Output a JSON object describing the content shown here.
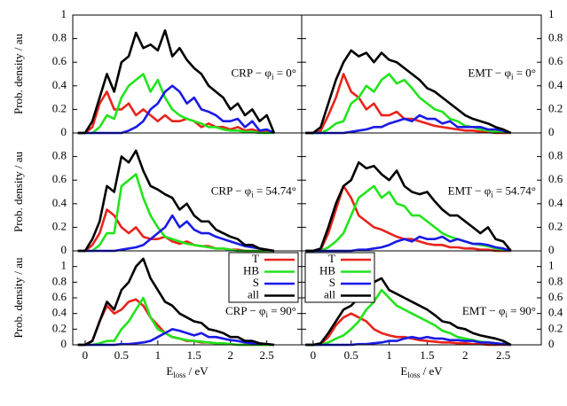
{
  "chart_data": [
    {
      "type": "line",
      "annotation": [
        "CRP − φ",
        "i",
        " = 0°"
      ],
      "ylabel": "Prob. density / au",
      "yaxis_side": "left",
      "ylim": [
        0,
        1
      ],
      "yticks": [
        0,
        0.2,
        0.4,
        0.6,
        0.8,
        1
      ],
      "xlim": [
        -0.17,
        2.98
      ],
      "x": [
        -0.1,
        0,
        0.1,
        0.2,
        0.3,
        0.4,
        0.5,
        0.6,
        0.7,
        0.8,
        0.9,
        1,
        1.1,
        1.2,
        1.3,
        1.4,
        1.5,
        1.6,
        1.7,
        1.8,
        1.9,
        2,
        2.1,
        2.2,
        2.3,
        2.4,
        2.5,
        2.6
      ],
      "series": [
        {
          "name": "T",
          "color": "#e8231b",
          "values": [
            0,
            0,
            0.05,
            0.25,
            0.35,
            0.2,
            0.2,
            0.25,
            0.15,
            0.2,
            0.15,
            0.1,
            0.15,
            0.1,
            0.1,
            0.12,
            0.1,
            0.05,
            0.08,
            0.05,
            0.05,
            0.03,
            0.05,
            0.02,
            0.03,
            0.01,
            0.02,
            0
          ]
        },
        {
          "name": "HB",
          "color": "#22e41c",
          "values": [
            0,
            0,
            0,
            0.05,
            0.15,
            0.12,
            0.3,
            0.4,
            0.45,
            0.5,
            0.35,
            0.45,
            0.3,
            0.2,
            0.15,
            0.12,
            0.1,
            0.08,
            0.05,
            0.05,
            0.03,
            0.02,
            0.02,
            0.01,
            0.01,
            0,
            0,
            0
          ]
        },
        {
          "name": "S",
          "color": "#1a1ae6",
          "values": [
            0,
            0,
            0,
            0,
            0,
            0,
            0,
            0.02,
            0.05,
            0.1,
            0.2,
            0.25,
            0.35,
            0.4,
            0.35,
            0.25,
            0.3,
            0.2,
            0.18,
            0.15,
            0.1,
            0.1,
            0.12,
            0.05,
            0.1,
            0.02,
            0.03,
            0
          ]
        },
        {
          "name": "all",
          "color": "#000000",
          "values": [
            0,
            0,
            0.1,
            0.3,
            0.5,
            0.35,
            0.6,
            0.65,
            0.85,
            0.72,
            0.75,
            0.7,
            0.87,
            0.65,
            0.72,
            0.62,
            0.55,
            0.5,
            0.4,
            0.35,
            0.3,
            0.2,
            0.25,
            0.15,
            0.2,
            0.1,
            0.15,
            0
          ]
        }
      ]
    },
    {
      "type": "line",
      "annotation": [
        "EMT − φ",
        "i",
        " = 0°"
      ],
      "yaxis_side": "right",
      "ylim": [
        0,
        1
      ],
      "yticks": [
        0,
        0.2,
        0.4,
        0.6,
        0.8,
        1
      ],
      "xlim": [
        -0.15,
        3
      ],
      "x": [
        -0.1,
        0,
        0.1,
        0.2,
        0.3,
        0.4,
        0.5,
        0.6,
        0.7,
        0.8,
        0.9,
        1,
        1.1,
        1.2,
        1.3,
        1.4,
        1.5,
        1.6,
        1.7,
        1.8,
        1.9,
        2,
        2.1,
        2.2,
        2.3,
        2.4,
        2.5,
        2.6
      ],
      "series": [
        {
          "name": "T",
          "color": "#e8231b",
          "values": [
            0,
            0,
            0.02,
            0.15,
            0.3,
            0.5,
            0.35,
            0.3,
            0.2,
            0.25,
            0.15,
            0.15,
            0.18,
            0.12,
            0.12,
            0.1,
            0.08,
            0.06,
            0.05,
            0.04,
            0.03,
            0.02,
            0.02,
            0.01,
            0.01,
            0,
            0,
            0
          ]
        },
        {
          "name": "HB",
          "color": "#22e41c",
          "values": [
            0,
            0,
            0,
            0.03,
            0.08,
            0.1,
            0.25,
            0.3,
            0.4,
            0.35,
            0.45,
            0.5,
            0.42,
            0.45,
            0.38,
            0.3,
            0.25,
            0.2,
            0.18,
            0.12,
            0.1,
            0.06,
            0.05,
            0.03,
            0.02,
            0.01,
            0.01,
            0
          ]
        },
        {
          "name": "S",
          "color": "#1a1ae6",
          "values": [
            0,
            0,
            0,
            0,
            0,
            0,
            0.01,
            0.02,
            0.03,
            0.05,
            0.05,
            0.08,
            0.1,
            0.12,
            0.1,
            0.15,
            0.12,
            0.12,
            0.08,
            0.1,
            0.05,
            0.05,
            0.05,
            0.05,
            0.03,
            0.03,
            0.02,
            0
          ]
        },
        {
          "name": "all",
          "color": "#000000",
          "values": [
            0,
            0,
            0.05,
            0.25,
            0.45,
            0.6,
            0.7,
            0.65,
            0.68,
            0.6,
            0.68,
            0.62,
            0.6,
            0.55,
            0.5,
            0.45,
            0.38,
            0.35,
            0.3,
            0.25,
            0.2,
            0.15,
            0.12,
            0.1,
            0.08,
            0.05,
            0.03,
            0
          ]
        }
      ]
    },
    {
      "type": "line",
      "annotation": [
        "CRP − φ",
        "i",
        " = 54.74°"
      ],
      "ylabel": "Prob. density / au",
      "yaxis_side": "left",
      "ylim": [
        0,
        1
      ],
      "yticks": [
        0,
        0.2,
        0.4,
        0.6,
        0.8
      ],
      "xlim": [
        -0.17,
        2.98
      ],
      "x": [
        -0.1,
        0,
        0.1,
        0.2,
        0.3,
        0.4,
        0.5,
        0.6,
        0.7,
        0.8,
        0.9,
        1,
        1.1,
        1.2,
        1.3,
        1.4,
        1.5,
        1.6,
        1.7,
        1.8,
        1.9,
        2,
        2.1,
        2.2,
        2.3,
        2.4,
        2.5,
        2.6
      ],
      "series": [
        {
          "name": "T",
          "color": "#e8231b",
          "values": [
            0,
            0,
            0.05,
            0.15,
            0.35,
            0.3,
            0.2,
            0.15,
            0.2,
            0.12,
            0.1,
            0.1,
            0.12,
            0.08,
            0.06,
            0.08,
            0.05,
            0.04,
            0.04,
            0.02,
            0.02,
            0.01,
            0.01,
            0,
            0,
            0,
            0,
            0
          ]
        },
        {
          "name": "HB",
          "color": "#22e41c",
          "values": [
            0,
            0,
            0,
            0.05,
            0.15,
            0.15,
            0.55,
            0.6,
            0.65,
            0.45,
            0.3,
            0.2,
            0.12,
            0.1,
            0.08,
            0.06,
            0.05,
            0.04,
            0.03,
            0.02,
            0.02,
            0.01,
            0,
            0,
            0,
            0,
            0,
            0
          ]
        },
        {
          "name": "S",
          "color": "#1a1ae6",
          "values": [
            0,
            0,
            0,
            0,
            0,
            0,
            0.01,
            0.02,
            0.03,
            0.05,
            0.1,
            0.15,
            0.2,
            0.3,
            0.2,
            0.25,
            0.18,
            0.15,
            0.15,
            0.12,
            0.1,
            0.08,
            0.06,
            0.04,
            0.03,
            0.02,
            0.01,
            0
          ]
        },
        {
          "name": "all",
          "color": "#000000",
          "values": [
            0,
            0,
            0.1,
            0.25,
            0.55,
            0.5,
            0.8,
            0.75,
            0.85,
            0.68,
            0.55,
            0.52,
            0.48,
            0.45,
            0.35,
            0.4,
            0.3,
            0.25,
            0.25,
            0.18,
            0.15,
            0.12,
            0.1,
            0.05,
            0.05,
            0.02,
            0.01,
            0
          ]
        }
      ]
    },
    {
      "type": "line",
      "annotation": [
        "EMT − φ",
        "i",
        " = 54.74°"
      ],
      "yaxis_side": "right",
      "ylim": [
        0,
        1
      ],
      "yticks": [
        0,
        0.2,
        0.4,
        0.6,
        0.8
      ],
      "xlim": [
        -0.15,
        3
      ],
      "x": [
        -0.1,
        0,
        0.1,
        0.2,
        0.3,
        0.4,
        0.5,
        0.6,
        0.7,
        0.8,
        0.9,
        1,
        1.1,
        1.2,
        1.3,
        1.4,
        1.5,
        1.6,
        1.7,
        1.8,
        1.9,
        2,
        2.1,
        2.2,
        2.3,
        2.4,
        2.5,
        2.6
      ],
      "series": [
        {
          "name": "T",
          "color": "#e8231b",
          "values": [
            0,
            0,
            0.01,
            0.15,
            0.35,
            0.55,
            0.45,
            0.3,
            0.25,
            0.2,
            0.18,
            0.15,
            0.12,
            0.1,
            0.1,
            0.08,
            0.06,
            0.05,
            0.05,
            0.03,
            0.03,
            0.02,
            0.02,
            0.01,
            0.01,
            0,
            0,
            0
          ]
        },
        {
          "name": "HB",
          "color": "#22e41c",
          "values": [
            0,
            0,
            0,
            0.03,
            0.08,
            0.15,
            0.3,
            0.45,
            0.5,
            0.55,
            0.45,
            0.5,
            0.4,
            0.38,
            0.3,
            0.3,
            0.25,
            0.2,
            0.15,
            0.12,
            0.1,
            0.08,
            0.06,
            0.05,
            0.04,
            0.02,
            0.01,
            0
          ]
        },
        {
          "name": "S",
          "color": "#1a1ae6",
          "values": [
            0,
            0,
            0,
            0,
            0,
            0,
            0,
            0.01,
            0.01,
            0.02,
            0.03,
            0.05,
            0.08,
            0.1,
            0.08,
            0.12,
            0.1,
            0.1,
            0.12,
            0.08,
            0.1,
            0.08,
            0.06,
            0.06,
            0.05,
            0.03,
            0.02,
            0
          ]
        },
        {
          "name": "all",
          "color": "#000000",
          "values": [
            0,
            0,
            0.02,
            0.2,
            0.4,
            0.55,
            0.6,
            0.75,
            0.7,
            0.72,
            0.65,
            0.6,
            0.68,
            0.55,
            0.5,
            0.48,
            0.5,
            0.42,
            0.35,
            0.3,
            0.3,
            0.25,
            0.2,
            0.15,
            0.2,
            0.1,
            0.08,
            0
          ]
        }
      ]
    },
    {
      "type": "line",
      "annotation": [
        "CRP − φ",
        "i",
        " = 90°"
      ],
      "ylabel": "Prob. density / au",
      "yaxis_side": "left",
      "ylim": [
        0,
        1.2
      ],
      "yticks": [
        0,
        0.2,
        0.4,
        0.6,
        0.8,
        1
      ],
      "xlim": [
        -0.17,
        2.98
      ],
      "xticks": [
        0,
        0.5,
        1,
        1.5,
        2,
        2.5
      ],
      "xlabel": [
        "E",
        "loss",
        " / eV"
      ],
      "legend": "upper right",
      "x": [
        -0.1,
        0,
        0.1,
        0.2,
        0.3,
        0.4,
        0.5,
        0.6,
        0.7,
        0.8,
        0.9,
        1,
        1.1,
        1.2,
        1.3,
        1.4,
        1.5,
        1.6,
        1.7,
        1.8,
        1.9,
        2,
        2.1,
        2.2,
        2.3,
        2.4,
        2.5,
        2.6
      ],
      "series": [
        {
          "name": "T",
          "color": "#e8231b",
          "values": [
            0,
            0,
            0.05,
            0.3,
            0.5,
            0.4,
            0.45,
            0.55,
            0.58,
            0.5,
            0.35,
            0.25,
            0.15,
            0.1,
            0.08,
            0.05,
            0.05,
            0.03,
            0.03,
            0.02,
            0.01,
            0.01,
            0,
            0,
            0,
            0,
            0,
            0
          ]
        },
        {
          "name": "HB",
          "color": "#22e41c",
          "values": [
            0,
            0,
            0,
            0.02,
            0.05,
            0.05,
            0.2,
            0.3,
            0.45,
            0.6,
            0.35,
            0.2,
            0.15,
            0.1,
            0.08,
            0.06,
            0.05,
            0.04,
            0.03,
            0.02,
            0.02,
            0.01,
            0,
            0,
            0,
            0,
            0,
            0
          ]
        },
        {
          "name": "S",
          "color": "#1a1ae6",
          "values": [
            0,
            0,
            0,
            0,
            0,
            0,
            0.01,
            0.01,
            0.02,
            0.03,
            0.05,
            0.1,
            0.15,
            0.2,
            0.18,
            0.15,
            0.12,
            0.15,
            0.1,
            0.1,
            0.08,
            0.06,
            0.05,
            0.03,
            0.02,
            0.01,
            0.01,
            0
          ]
        },
        {
          "name": "all",
          "color": "#000000",
          "values": [
            0,
            0,
            0.05,
            0.3,
            0.55,
            0.45,
            0.7,
            0.8,
            1,
            1.1,
            0.85,
            0.7,
            0.55,
            0.5,
            0.4,
            0.35,
            0.3,
            0.28,
            0.2,
            0.18,
            0.15,
            0.1,
            0.1,
            0.05,
            0.05,
            0.02,
            0.01,
            0
          ]
        }
      ]
    },
    {
      "type": "line",
      "annotation": [
        "EMT − φ",
        "i",
        " = 90°"
      ],
      "yaxis_side": "right",
      "ylim": [
        0,
        1.2
      ],
      "yticks": [
        0,
        0.2,
        0.4,
        0.6,
        0.8,
        1
      ],
      "xlim": [
        -0.15,
        3
      ],
      "xticks": [
        0,
        0.5,
        1,
        1.5,
        2,
        2.5
      ],
      "xlabel": [
        "E",
        "loss",
        " / eV"
      ],
      "legend": "upper left",
      "x": [
        -0.1,
        0,
        0.1,
        0.2,
        0.3,
        0.4,
        0.5,
        0.6,
        0.7,
        0.8,
        0.9,
        1,
        1.1,
        1.2,
        1.3,
        1.4,
        1.5,
        1.6,
        1.7,
        1.8,
        1.9,
        2,
        2.1,
        2.2,
        2.3,
        2.4,
        2.5,
        2.6
      ],
      "series": [
        {
          "name": "T",
          "color": "#e8231b",
          "values": [
            0,
            0,
            0.01,
            0.1,
            0.25,
            0.35,
            0.4,
            0.35,
            0.3,
            0.2,
            0.15,
            0.12,
            0.1,
            0.1,
            0.08,
            0.06,
            0.05,
            0.04,
            0.03,
            0.03,
            0.02,
            0.02,
            0.01,
            0.01,
            0,
            0,
            0,
            0
          ]
        },
        {
          "name": "HB",
          "color": "#22e41c",
          "values": [
            0,
            0,
            0,
            0.03,
            0.08,
            0.12,
            0.2,
            0.3,
            0.45,
            0.55,
            0.7,
            0.6,
            0.5,
            0.45,
            0.4,
            0.35,
            0.3,
            0.25,
            0.18,
            0.15,
            0.1,
            0.08,
            0.06,
            0.04,
            0.03,
            0.02,
            0.01,
            0
          ]
        },
        {
          "name": "S",
          "color": "#1a1ae6",
          "values": [
            0,
            0,
            0,
            0,
            0,
            0,
            0,
            0.01,
            0.01,
            0.02,
            0.03,
            0.05,
            0.05,
            0.08,
            0.1,
            0.08,
            0.1,
            0.08,
            0.08,
            0.06,
            0.06,
            0.05,
            0.05,
            0.03,
            0.03,
            0.02,
            0.01,
            0
          ]
        },
        {
          "name": "all",
          "color": "#000000",
          "values": [
            0,
            0,
            0.02,
            0.15,
            0.3,
            0.45,
            0.5,
            0.6,
            0.7,
            0.8,
            0.85,
            0.7,
            0.65,
            0.6,
            0.55,
            0.5,
            0.45,
            0.38,
            0.3,
            0.28,
            0.22,
            0.2,
            0.15,
            0.12,
            0.1,
            0.08,
            0.05,
            0
          ]
        }
      ]
    }
  ]
}
